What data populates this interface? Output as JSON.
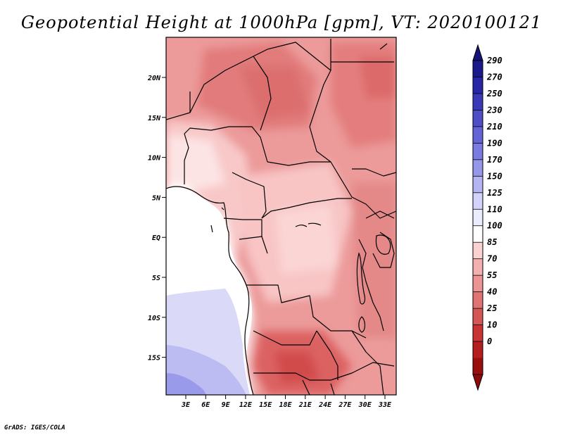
{
  "title": "Geopotential Height at 1000hPa [gpm], VT: 2020100121",
  "credit": "GrADS: IGES/COLA",
  "lat_labels": [
    "20N",
    "15N",
    "10N",
    "5N",
    "EQ",
    "5S",
    "10S",
    "15S"
  ],
  "lon_labels": [
    "3E",
    "6E",
    "9E",
    "12E",
    "15E",
    "18E",
    "21E",
    "24E",
    "27E",
    "30E",
    "33E"
  ],
  "colorbar": {
    "labels": [
      "290",
      "270",
      "250",
      "230",
      "210",
      "190",
      "170",
      "150",
      "125",
      "110",
      "100",
      "85",
      "70",
      "55",
      "40",
      "25",
      "10",
      "0"
    ],
    "colors": [
      "#1a1a8c",
      "#2626a6",
      "#3a3ab8",
      "#4e4ec8",
      "#6464d6",
      "#7a7ae0",
      "#9696ea",
      "#b4b4f2",
      "#d2d2fa",
      "#ececff",
      "#ffffff",
      "#fbd2d2",
      "#f4b0b0",
      "#ec9494",
      "#e07474",
      "#d65656",
      "#c83434",
      "#b41e1e",
      "#9a0e0e"
    ],
    "top_color": "#141478",
    "bottom_color": "#8c0a0a"
  }
}
